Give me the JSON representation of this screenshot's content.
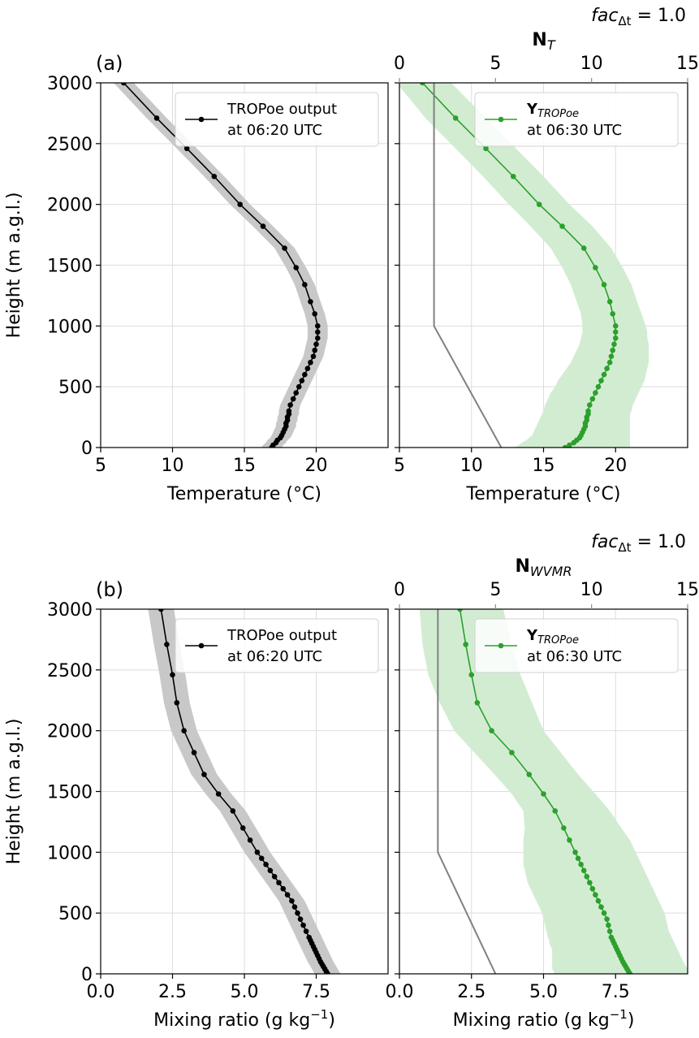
{
  "colors": {
    "black_line": "#000000",
    "black_band": "#c8c8c8",
    "green_line": "#2ca02c",
    "green_band": "#d2ecd2",
    "grey_line": "#808080",
    "grey_text": "#8c8c8c",
    "grid": "#dddddd"
  },
  "chart_data": [
    {
      "type": "line",
      "panel_label": "(a)",
      "xlabel": "Temperature (°C)",
      "ylabel": "Height (m a.g.l.)",
      "xlim": [
        5,
        25
      ],
      "ylim": [
        0,
        3000
      ],
      "xticks": [
        5,
        10,
        15,
        20
      ],
      "xtick_labels": [
        "5",
        "10",
        "15",
        "20"
      ],
      "yticks": [
        0,
        500,
        1000,
        1500,
        2000,
        2500,
        3000
      ],
      "ytick_labels": [
        "0",
        "500",
        "1000",
        "1500",
        "2000",
        "2500",
        "3000"
      ],
      "grid": true,
      "legend": {
        "position": "top-right",
        "line1": "TROPoe output",
        "line2": "at 06:20 UTC"
      },
      "series": [
        {
          "name": "TROPoe output at 06:20 UTC",
          "color": "#000000",
          "band_width": 0.7,
          "y": [
            0,
            20,
            40,
            60,
            80,
            100,
            125,
            150,
            175,
            200,
            225,
            250,
            275,
            300,
            350,
            400,
            450,
            500,
            550,
            600,
            650,
            700,
            750,
            800,
            850,
            900,
            950,
            1000,
            1100,
            1200,
            1340,
            1480,
            1640,
            1820,
            2000,
            2230,
            2460,
            2710,
            3000
          ],
          "x": [
            16.9,
            17.0,
            17.2,
            17.3,
            17.5,
            17.6,
            17.7,
            17.8,
            17.9,
            17.9,
            18.0,
            18.0,
            18.1,
            18.1,
            18.2,
            18.4,
            18.6,
            18.8,
            19.0,
            19.2,
            19.4,
            19.6,
            19.8,
            19.9,
            20.0,
            20.1,
            20.1,
            20.1,
            19.9,
            19.6,
            19.2,
            18.6,
            17.8,
            16.3,
            14.7,
            12.9,
            11.0,
            8.9,
            6.6
          ]
        }
      ]
    },
    {
      "type": "line",
      "xlabel": "Temperature (°C)",
      "xlim": [
        5,
        25
      ],
      "ylim": [
        0,
        3000
      ],
      "xticks": [
        5,
        10,
        15,
        20
      ],
      "xtick_labels": [
        "5",
        "10",
        "15",
        "20"
      ],
      "grid": true,
      "annotation_top_right": "facΔt = 1.0",
      "annotation_parts": {
        "base": "fac",
        "sub": "Δt",
        "rest": " = 1.0"
      },
      "top_axis": {
        "label_base": "N",
        "label_sub": "T",
        "xlim": [
          0,
          15
        ],
        "xticks": [
          0,
          5,
          10,
          15
        ],
        "xtick_labels": [
          "0",
          "5",
          "10",
          "15"
        ]
      },
      "legend": {
        "position": "top-right",
        "line1_base": "Y",
        "line1_sub": "TROPoe",
        "line2": "at 06:30 UTC"
      },
      "series": [
        {
          "name": "YTROPoe at 06:30 UTC",
          "color": "#2ca02c",
          "y": [
            0,
            20,
            40,
            60,
            80,
            100,
            125,
            150,
            175,
            200,
            225,
            250,
            275,
            300,
            350,
            400,
            450,
            500,
            550,
            600,
            650,
            700,
            750,
            800,
            850,
            900,
            950,
            1000,
            1100,
            1200,
            1340,
            1480,
            1640,
            1820,
            2000,
            2230,
            2460,
            2710,
            3000
          ],
          "x": [
            16.5,
            16.8,
            17.1,
            17.3,
            17.5,
            17.6,
            17.7,
            17.8,
            17.9,
            17.9,
            18.0,
            18.0,
            18.1,
            18.1,
            18.2,
            18.4,
            18.6,
            18.8,
            19.0,
            19.2,
            19.4,
            19.6,
            19.7,
            19.8,
            19.9,
            20.0,
            20.0,
            20.0,
            19.8,
            19.6,
            19.2,
            18.6,
            17.8,
            16.3,
            14.7,
            12.9,
            11.0,
            8.9,
            6.6
          ],
          "band_lower": [
            13.0,
            13.3,
            13.5,
            13.8,
            14.0,
            14.2,
            14.3,
            14.4,
            14.5,
            14.6,
            14.7,
            14.8,
            14.9,
            15.0,
            15.1,
            15.3,
            15.5,
            15.8,
            16.0,
            16.3,
            16.6,
            16.9,
            17.1,
            17.3,
            17.5,
            17.6,
            17.7,
            17.7,
            17.6,
            17.3,
            16.9,
            16.3,
            15.5,
            14.1,
            12.6,
            10.8,
            8.9,
            6.8,
            4.8
          ],
          "band_upper": [
            21.0,
            21.0,
            21.0,
            21.0,
            21.0,
            21.0,
            21.0,
            21.0,
            21.0,
            21.0,
            21.0,
            21.0,
            21.0,
            21.1,
            21.2,
            21.4,
            21.6,
            21.8,
            22.0,
            22.1,
            22.2,
            22.3,
            22.3,
            22.3,
            22.3,
            22.2,
            22.2,
            22.1,
            21.8,
            21.5,
            21.1,
            20.5,
            19.7,
            18.4,
            16.8,
            15.0,
            13.1,
            11.0,
            8.6
          ]
        },
        {
          "name": "NT",
          "color": "#808080",
          "axis": "top",
          "x": [
            5.3,
            1.8,
            1.8,
            1.8
          ],
          "y": [
            0,
            1000,
            2000,
            3000
          ]
        }
      ]
    },
    {
      "type": "line",
      "panel_label": "(b)",
      "xlabel_base": "Mixing ratio (g kg",
      "xlabel_sup": "−1",
      "xlabel_end": ")",
      "ylabel": "Height (m a.g.l.)",
      "xlim": [
        0,
        10
      ],
      "ylim": [
        0,
        3000
      ],
      "xticks": [
        0,
        2.5,
        5,
        7.5
      ],
      "xtick_labels": [
        "0.0",
        "2.5",
        "5.0",
        "7.5"
      ],
      "yticks": [
        0,
        500,
        1000,
        1500,
        2000,
        2500,
        3000
      ],
      "ytick_labels": [
        "0",
        "500",
        "1000",
        "1500",
        "2000",
        "2500",
        "3000"
      ],
      "grid": true,
      "legend": {
        "position": "top-right",
        "line1": "TROPoe output",
        "line2": "at 06:20 UTC"
      },
      "series": [
        {
          "name": "TROPoe output at 06:20 UTC",
          "color": "#000000",
          "band_width": 0.45,
          "y": [
            0,
            20,
            40,
            60,
            80,
            100,
            125,
            150,
            175,
            200,
            225,
            250,
            275,
            300,
            350,
            400,
            450,
            500,
            550,
            600,
            650,
            700,
            750,
            800,
            850,
            900,
            950,
            1000,
            1100,
            1200,
            1340,
            1480,
            1640,
            1820,
            2000,
            2230,
            2460,
            2710,
            3000
          ],
          "x": [
            7.9,
            7.85,
            7.8,
            7.75,
            7.7,
            7.65,
            7.6,
            7.55,
            7.5,
            7.45,
            7.4,
            7.35,
            7.3,
            7.25,
            7.15,
            7.05,
            6.95,
            6.85,
            6.75,
            6.65,
            6.5,
            6.35,
            6.2,
            6.05,
            5.9,
            5.75,
            5.6,
            5.45,
            5.2,
            4.95,
            4.6,
            4.1,
            3.6,
            3.25,
            2.9,
            2.65,
            2.5,
            2.3,
            2.1
          ]
        }
      ]
    },
    {
      "type": "line",
      "xlabel_base": "Mixing ratio (g kg",
      "xlabel_sup": "−1",
      "xlabel_end": ")",
      "xlim": [
        0,
        10
      ],
      "ylim": [
        0,
        3000
      ],
      "xticks": [
        0,
        2.5,
        5,
        7.5
      ],
      "xtick_labels": [
        "0.0",
        "2.5",
        "5.0",
        "7.5"
      ],
      "grid": true,
      "annotation_top_right": "facΔt = 1.0",
      "annotation_parts": {
        "base": "fac",
        "sub": "Δt",
        "rest": " = 1.0"
      },
      "top_axis": {
        "label_base": "N",
        "label_sub": "WVMR",
        "xlim": [
          0,
          15
        ],
        "xticks": [
          0,
          5,
          10,
          15
        ],
        "xtick_labels": [
          "0",
          "5",
          "10",
          "15"
        ]
      },
      "legend": {
        "position": "top-right",
        "line1_base": "Y",
        "line1_sub": "TROPoe",
        "line2": "at 06:30 UTC"
      },
      "series": [
        {
          "name": "YTROPoe at 06:30 UTC",
          "color": "#2ca02c",
          "y": [
            0,
            20,
            40,
            60,
            80,
            100,
            125,
            150,
            175,
            200,
            225,
            250,
            275,
            300,
            350,
            400,
            450,
            500,
            550,
            600,
            650,
            700,
            750,
            800,
            850,
            900,
            950,
            1000,
            1100,
            1200,
            1340,
            1480,
            1640,
            1820,
            2000,
            2230,
            2460,
            2710,
            3000
          ],
          "x": [
            8.0,
            7.95,
            7.9,
            7.85,
            7.8,
            7.75,
            7.7,
            7.65,
            7.6,
            7.55,
            7.5,
            7.45,
            7.4,
            7.35,
            7.3,
            7.25,
            7.2,
            7.1,
            7.0,
            6.9,
            6.8,
            6.7,
            6.6,
            6.5,
            6.4,
            6.3,
            6.2,
            6.1,
            5.9,
            5.7,
            5.4,
            5.0,
            4.5,
            3.9,
            3.2,
            2.7,
            2.5,
            2.3,
            2.1
          ],
          "band_lower": [
            5.4,
            5.35,
            5.3,
            5.3,
            5.3,
            5.3,
            5.3,
            5.3,
            5.3,
            5.3,
            5.25,
            5.2,
            5.2,
            5.15,
            5.1,
            5.05,
            5.0,
            4.95,
            4.85,
            4.75,
            4.65,
            4.55,
            4.45,
            4.4,
            4.35,
            4.3,
            4.3,
            4.3,
            4.3,
            4.35,
            4.3,
            3.9,
            3.3,
            2.6,
            1.9,
            1.4,
            1.0,
            0.8,
            0.7
          ],
          "band_upper": [
            10.0,
            10.0,
            10.0,
            9.95,
            9.9,
            9.85,
            9.8,
            9.75,
            9.7,
            9.65,
            9.6,
            9.55,
            9.5,
            9.45,
            9.35,
            9.3,
            9.25,
            9.2,
            9.1,
            9.0,
            8.9,
            8.8,
            8.7,
            8.6,
            8.5,
            8.4,
            8.3,
            8.2,
            8.0,
            7.7,
            7.3,
            6.8,
            6.2,
            5.6,
            5.0,
            4.6,
            4.2,
            3.9,
            3.6
          ]
        },
        {
          "name": "NWVMR",
          "color": "#808080",
          "axis": "top",
          "x": [
            5.0,
            2.0,
            2.0,
            2.0
          ],
          "y": [
            0,
            1000,
            2000,
            3000
          ]
        }
      ]
    }
  ]
}
